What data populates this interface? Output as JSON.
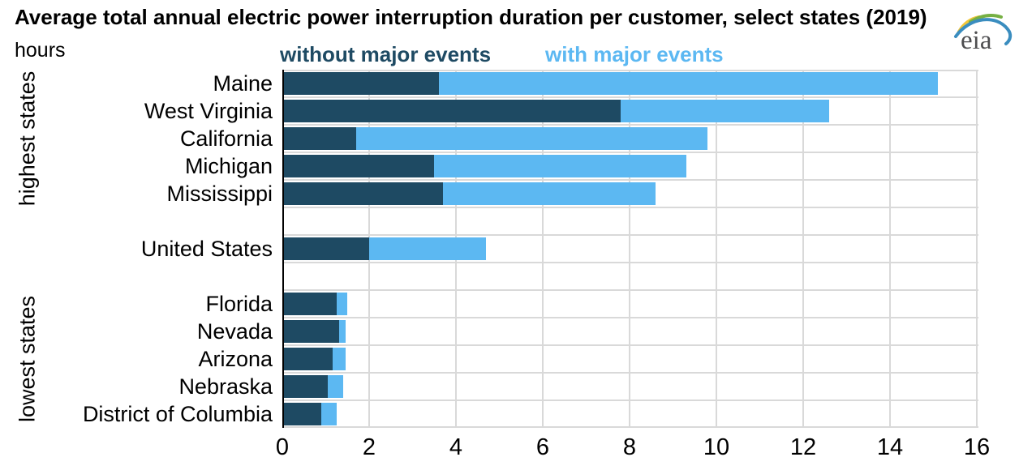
{
  "logo": {
    "text": "eia"
  },
  "chart_data": {
    "type": "bar",
    "orientation": "horizontal",
    "stacked": true,
    "title": "Average total annual electric power interruption duration per customer, select states (2019)",
    "unit": "hours",
    "xlim": [
      0,
      16
    ],
    "xticks": [
      0,
      2,
      4,
      6,
      8,
      10,
      12,
      14,
      16
    ],
    "grid": true,
    "legend_position": "top",
    "axis_color": "#000000",
    "gridline_color": "#d9d9d9",
    "series": [
      {
        "name": "without major events",
        "color": "#1e4a63"
      },
      {
        "name": "with major events",
        "color": "#5cb8f2"
      }
    ],
    "groups": [
      {
        "label": "highest states",
        "rows": [
          {
            "label": "Maine",
            "without_major_events": 3.6,
            "with_major_events": 11.5,
            "total": 15.1
          },
          {
            "label": "West Virginia",
            "without_major_events": 7.8,
            "with_major_events": 4.8,
            "total": 12.6
          },
          {
            "label": "California",
            "without_major_events": 1.7,
            "with_major_events": 8.1,
            "total": 9.8
          },
          {
            "label": "Michigan",
            "without_major_events": 3.5,
            "with_major_events": 5.8,
            "total": 9.3
          },
          {
            "label": "Mississippi",
            "without_major_events": 3.7,
            "with_major_events": 4.9,
            "total": 8.6
          }
        ]
      },
      {
        "label": "",
        "rows": [
          {
            "label": "United States",
            "without_major_events": 2.0,
            "with_major_events": 2.7,
            "total": 4.7
          }
        ]
      },
      {
        "label": "lowest states",
        "rows": [
          {
            "label": "Florida",
            "without_major_events": 1.25,
            "with_major_events": 0.25,
            "total": 1.5
          },
          {
            "label": "Nevada",
            "without_major_events": 1.3,
            "with_major_events": 0.15,
            "total": 1.45
          },
          {
            "label": "Arizona",
            "without_major_events": 1.15,
            "with_major_events": 0.3,
            "total": 1.45
          },
          {
            "label": "Nebraska",
            "without_major_events": 1.05,
            "with_major_events": 0.35,
            "total": 1.4
          },
          {
            "label": "District of Columbia",
            "without_major_events": 0.9,
            "with_major_events": 0.35,
            "total": 1.25
          }
        ]
      }
    ]
  }
}
